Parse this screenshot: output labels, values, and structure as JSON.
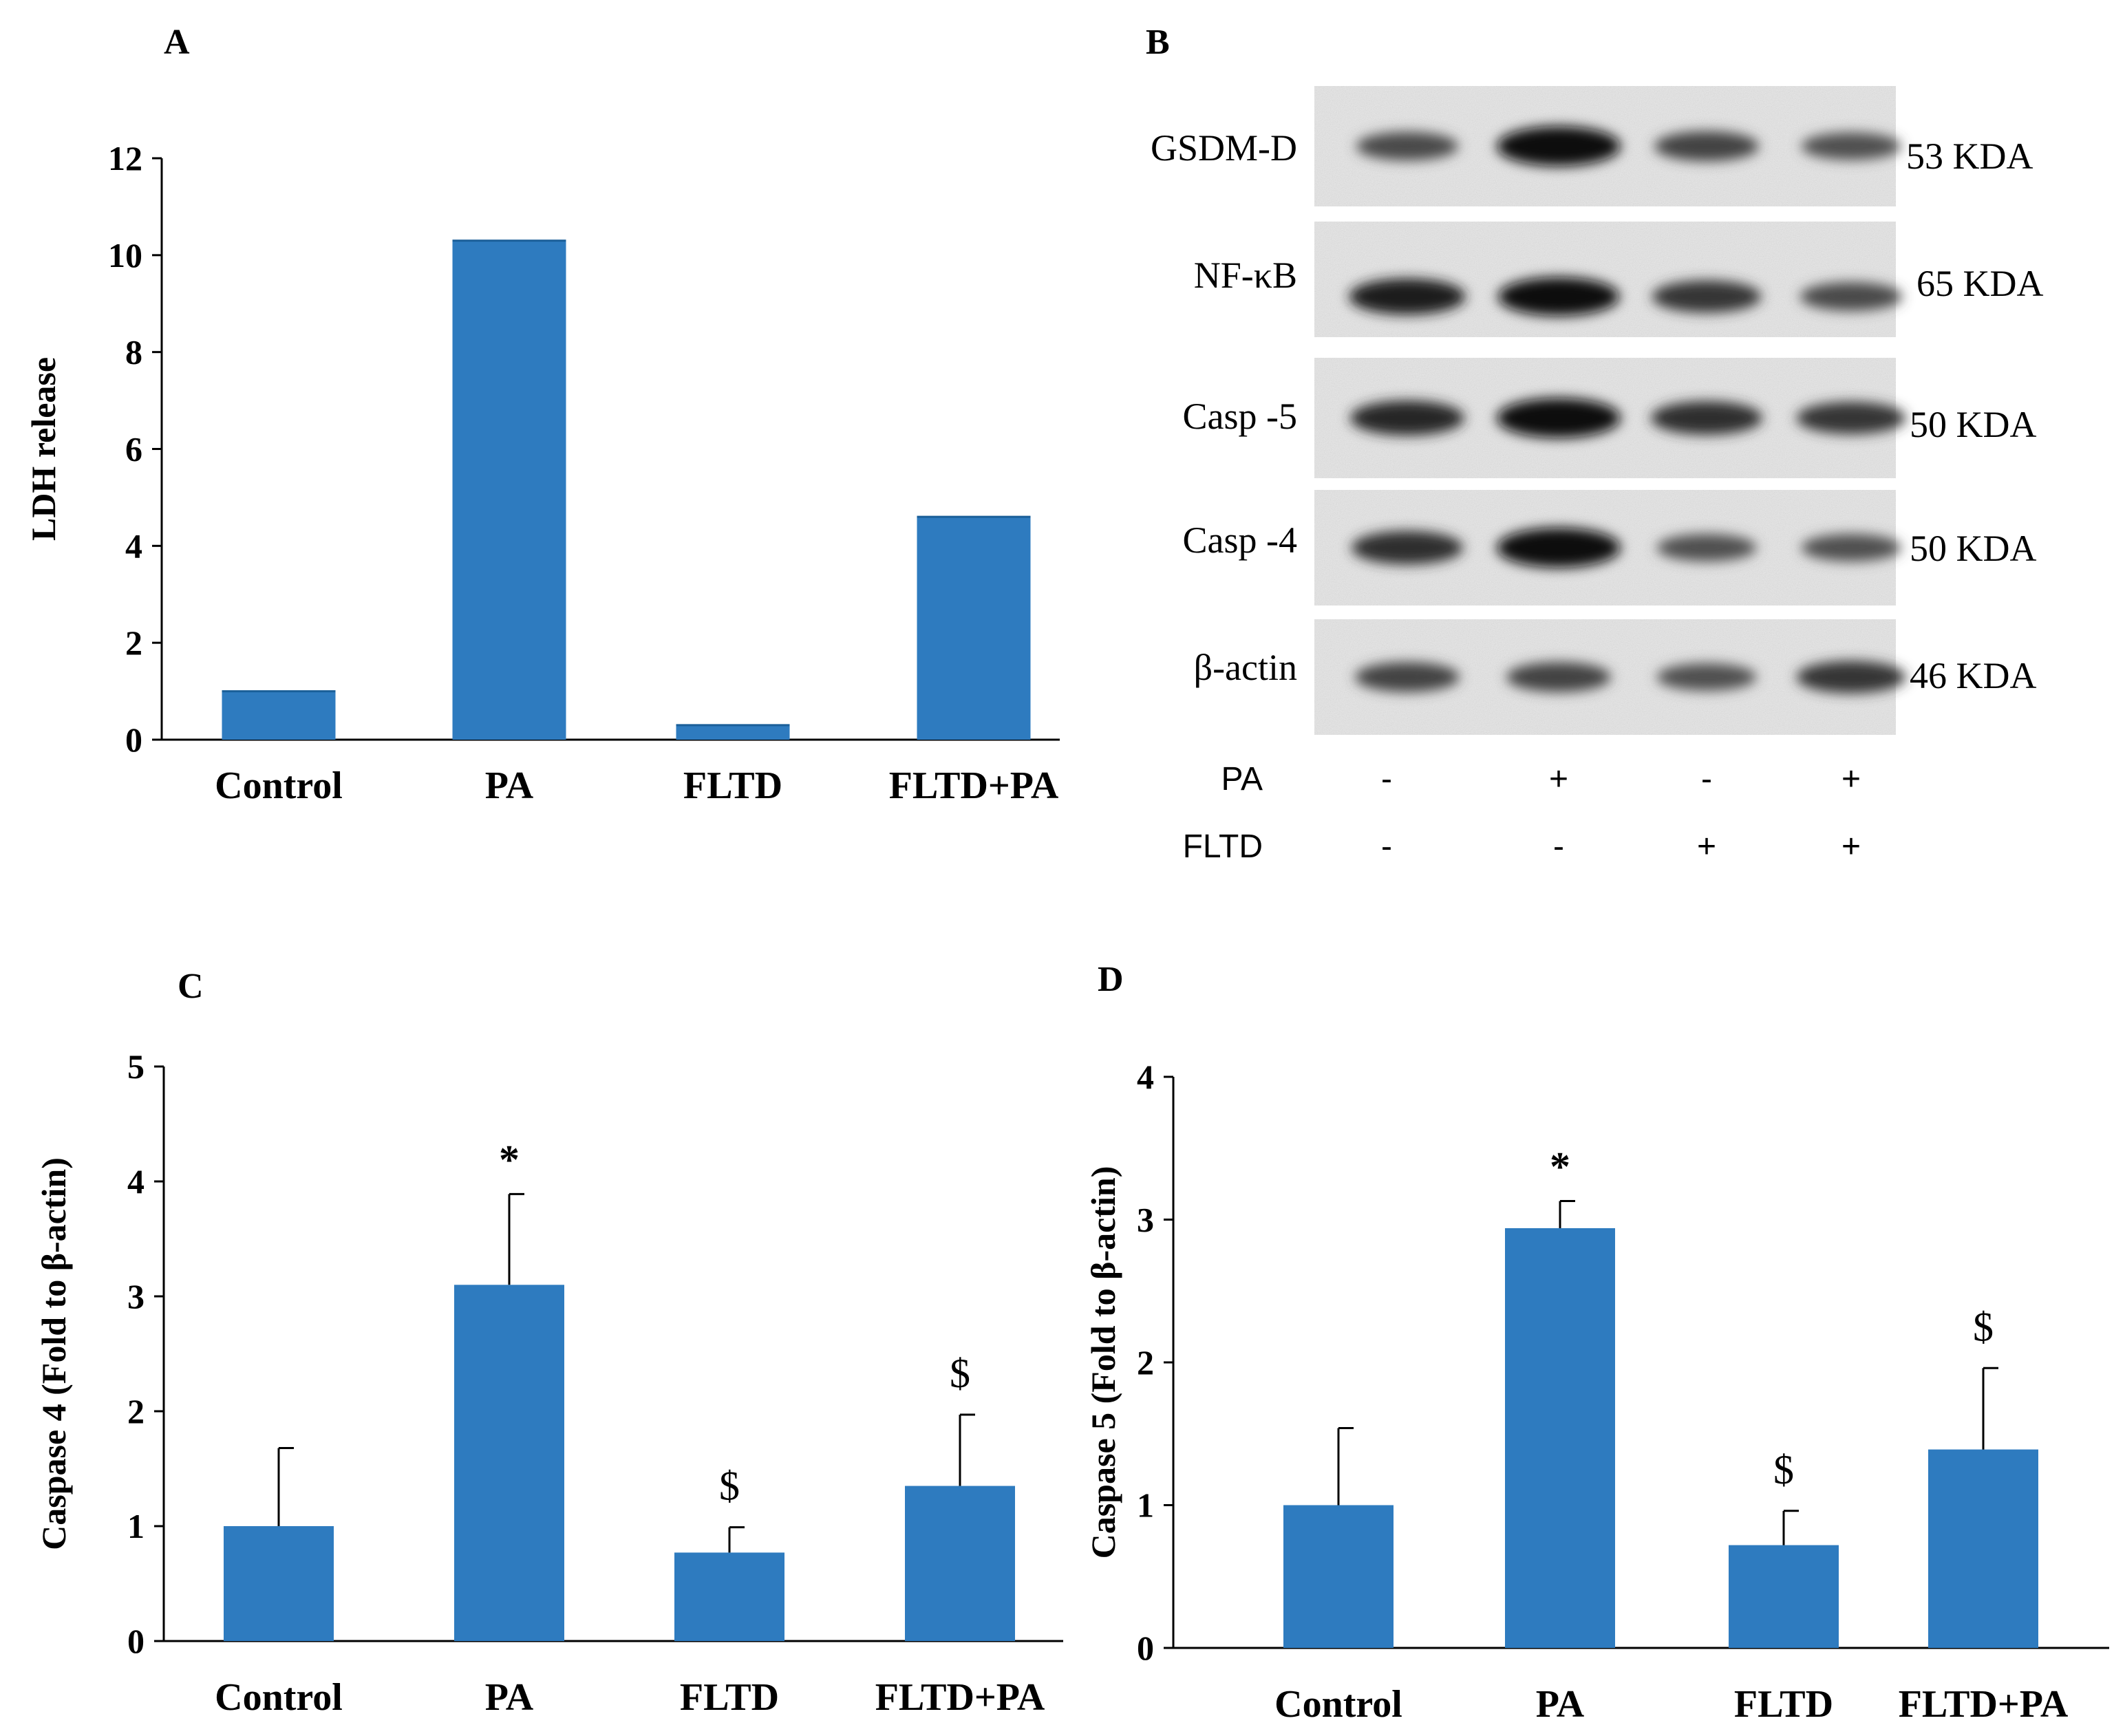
{
  "colors": {
    "bar": "#2e7bbf",
    "axis": "#000000"
  },
  "chart_data": [
    {
      "panel": "A",
      "type": "bar",
      "title": "",
      "xlabel": "",
      "ylabel": "LDH release",
      "categories": [
        "Control",
        "PA",
        "FLTD",
        "FLTD+PA"
      ],
      "values": [
        1.0,
        10.3,
        0.3,
        4.6
      ],
      "errors": [
        0,
        0,
        0,
        0
      ],
      "annotations": [
        "",
        "",
        "",
        ""
      ],
      "ylim": [
        0,
        12
      ],
      "yticks": [
        "0",
        "2",
        "4",
        "6",
        "8",
        "10",
        "12"
      ]
    },
    {
      "panel": "C",
      "type": "bar",
      "title": "",
      "xlabel": "",
      "ylabel": "Caspase 4  (Fold to β-actin)",
      "categories": [
        "Control",
        "PA",
        "FLTD",
        "FLTD+PA"
      ],
      "values": [
        1.0,
        3.1,
        0.77,
        1.35
      ],
      "errors": [
        0.68,
        0.79,
        0.22,
        0.62
      ],
      "annotations": [
        "",
        "*",
        "$",
        "$"
      ],
      "ylim": [
        0,
        5
      ],
      "yticks": [
        "0",
        "1",
        "2",
        "3",
        "4",
        "5"
      ]
    },
    {
      "panel": "D",
      "type": "bar",
      "title": "",
      "xlabel": "",
      "ylabel": "Caspase 5  (Fold to β-actin)",
      "categories": [
        "Control",
        "PA",
        "FLTD",
        "FLTD+PA"
      ],
      "values": [
        1.0,
        2.94,
        0.72,
        1.39
      ],
      "errors": [
        0.54,
        0.19,
        0.24,
        0.57
      ],
      "annotations": [
        "",
        "*",
        "$",
        "$"
      ],
      "ylim": [
        0,
        4
      ],
      "yticks": [
        "0",
        "1",
        "2",
        "3",
        "4"
      ]
    }
  ],
  "blot": {
    "panel": "B",
    "rows": [
      {
        "protein": "GSDM-D",
        "size": "53 KDA",
        "intensities": [
          0.55,
          1.0,
          0.6,
          0.5
        ]
      },
      {
        "protein": "NF-κB",
        "size": "65 KDA",
        "intensities": [
          0.85,
          0.95,
          0.7,
          0.55
        ]
      },
      {
        "protein": "Casp -5",
        "size": "50 KDA",
        "intensities": [
          0.8,
          1.0,
          0.75,
          0.7
        ]
      },
      {
        "protein": "Casp -4",
        "size": "50 KDA",
        "intensities": [
          0.75,
          1.0,
          0.5,
          0.5
        ]
      },
      {
        "protein": "β-actin",
        "size": "46 KDA",
        "intensities": [
          0.6,
          0.6,
          0.5,
          0.7
        ]
      }
    ],
    "conditions": [
      {
        "name": "PA",
        "signs": [
          "-",
          "+",
          "-",
          "+"
        ]
      },
      {
        "name": "FLTD",
        "signs": [
          "-",
          "-",
          "+",
          "+"
        ]
      }
    ]
  }
}
